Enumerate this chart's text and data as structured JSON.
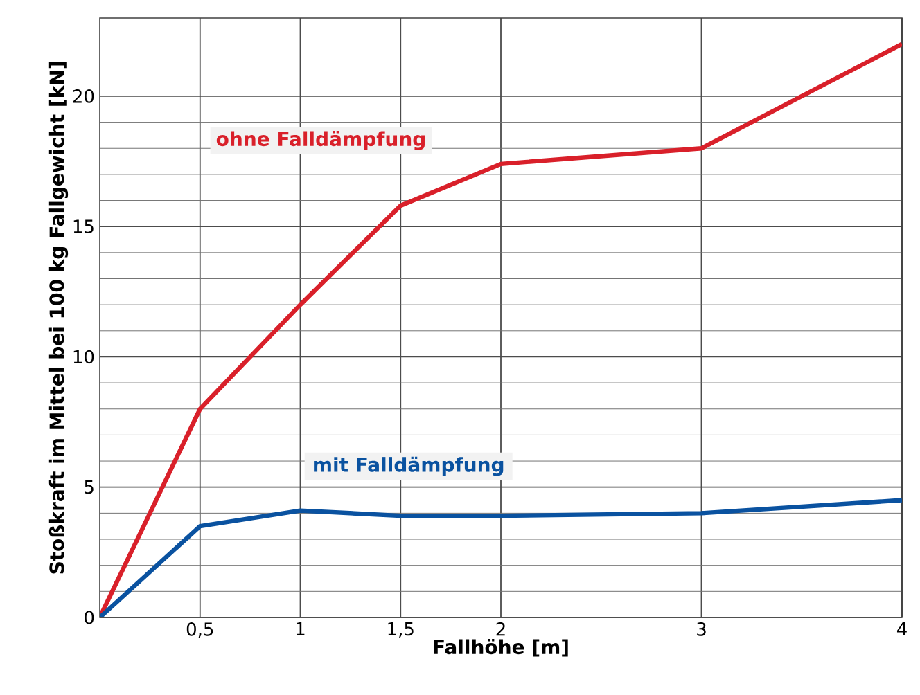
{
  "chart_data": {
    "type": "line",
    "xlabel": "Fallhöhe [m]",
    "ylabel": "Stoßkraft im Mittel bei 100 kg Fallgewicht [kN]",
    "x": [
      0,
      0.5,
      1,
      1.5,
      2,
      3,
      4
    ],
    "series": [
      {
        "name": "ohne Falldämpfung",
        "color": "#d9202a",
        "values": [
          0,
          8,
          12,
          15.8,
          17.4,
          18,
          22
        ]
      },
      {
        "name": "mit Falldämpfung",
        "color": "#0a52a0",
        "values": [
          0,
          3.5,
          4.1,
          3.9,
          3.9,
          4,
          4.5
        ]
      }
    ],
    "xlim": [
      0,
      4
    ],
    "ylim": [
      0,
      23
    ],
    "xticks": [
      {
        "value": 0.5,
        "label": "0,5"
      },
      1,
      {
        "value": 1.5,
        "label": "1,5"
      },
      2,
      3,
      4
    ],
    "yticks": [
      0,
      5,
      10,
      15,
      20
    ],
    "grid": true,
    "legend": false,
    "marker": "none",
    "line_style": "solid"
  }
}
